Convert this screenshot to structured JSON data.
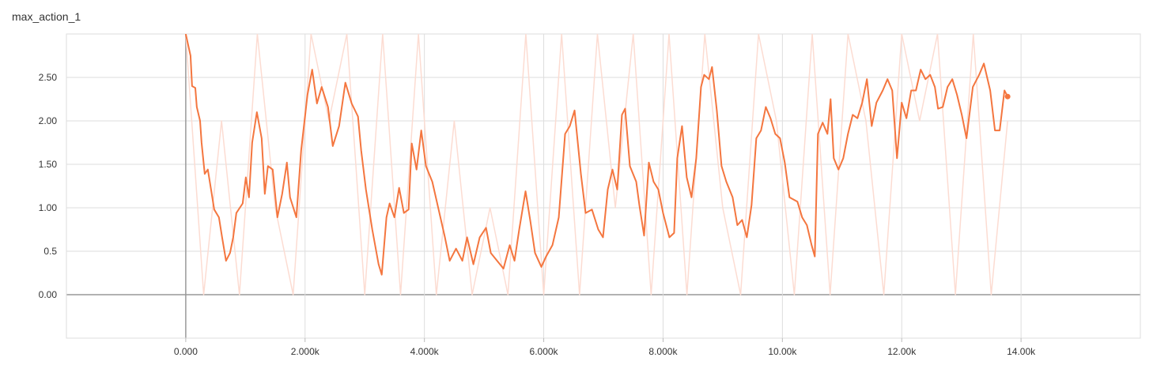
{
  "chart_data": {
    "type": "line",
    "title": "max_action_1",
    "xlim": [
      -2000,
      16000
    ],
    "ylim": [
      -0.5,
      3
    ],
    "xticks": [
      {
        "value": 0,
        "label": "0.000"
      },
      {
        "value": 2000,
        "label": "2.000k"
      },
      {
        "value": 4000,
        "label": "4.000k"
      },
      {
        "value": 6000,
        "label": "6.000k"
      },
      {
        "value": 8000,
        "label": "8.000k"
      },
      {
        "value": 10000,
        "label": "10.00k"
      },
      {
        "value": 12000,
        "label": "12.00k"
      },
      {
        "value": 14000,
        "label": "14.00k"
      }
    ],
    "yticks": [
      {
        "value": 0,
        "label": "0.00"
      },
      0.5,
      {
        "value": 1,
        "label": "1.00"
      },
      {
        "value": 1.5,
        "label": "1.50"
      },
      {
        "value": 2,
        "label": "2.00"
      },
      {
        "value": 2.5,
        "label": "2.50"
      }
    ],
    "grid": true,
    "series": [
      {
        "color": "#fcdcd2",
        "x": [
          0,
          300,
          600,
          900,
          1200,
          1500,
          1800,
          2100,
          2400,
          2700,
          3000,
          3300,
          3600,
          3900,
          4200,
          4500,
          4800,
          5100,
          5400,
          5700,
          6000,
          6300,
          6600,
          6900,
          7200,
          7500,
          7800,
          8100,
          8400,
          8700,
          9000,
          9300,
          9600,
          9900,
          10200,
          10500,
          10800,
          11100,
          11400,
          11700,
          12000,
          12300,
          12600,
          12900,
          13200,
          13500,
          13775
        ],
        "values": [
          3,
          0,
          2,
          0,
          3,
          1,
          0,
          3,
          2,
          3,
          0,
          3,
          0,
          3,
          0,
          2,
          0,
          1,
          0,
          3,
          0,
          3,
          0,
          3,
          1,
          3,
          0,
          3,
          0,
          3,
          1,
          0,
          3,
          2,
          0,
          3,
          0,
          3,
          2,
          0,
          3,
          2,
          3,
          0,
          3,
          0,
          2
        ]
      },
      {
        "color": "#f4763f",
        "x": [
          0,
          80,
          106,
          160,
          185,
          240,
          265,
          318,
          370,
          424,
          477,
          556,
          609,
          675,
          742,
          795,
          848,
          954,
          1007,
          1060,
          1113,
          1192,
          1272,
          1325,
          1377,
          1457,
          1536,
          1616,
          1695,
          1748,
          1854,
          1934,
          2040,
          2119,
          2199,
          2278,
          2384,
          2464,
          2570,
          2675,
          2781,
          2887,
          2940,
          3020,
          3126,
          3232,
          3285,
          3364,
          3417,
          3497,
          3576,
          3656,
          3735,
          3788,
          3868,
          3947,
          4026,
          4132,
          4238,
          4344,
          4424,
          4530,
          4636,
          4715,
          4821,
          4927,
          5033,
          5113,
          5219,
          5325,
          5430,
          5510,
          5589,
          5695,
          5775,
          5854,
          5960,
          6040,
          6146,
          6252,
          6358,
          6437,
          6517,
          6623,
          6702,
          6808,
          6914,
          6993,
          7073,
          7152,
          7232,
          7311,
          7364,
          7444,
          7550,
          7603,
          7682,
          7762,
          7841,
          7921,
          8000,
          8106,
          8185,
          8238,
          8318,
          8397,
          8477,
          8556,
          8636,
          8689,
          8768,
          8821,
          8901,
          8980,
          9060,
          9166,
          9245,
          9325,
          9404,
          9483,
          9563,
          9642,
          9722,
          9801,
          9881,
          9960,
          10040,
          10119,
          10252,
          10331,
          10411,
          10490,
          10543,
          10596,
          10675,
          10755,
          10808,
          10861,
          10940,
          11020,
          11099,
          11179,
          11258,
          11338,
          11417,
          11497,
          11576,
          11682,
          11762,
          11841,
          11921,
          12000,
          12079,
          12159,
          12238,
          12318,
          12397,
          12477,
          12556,
          12609,
          12689,
          12768,
          12848,
          12927,
          13007,
          13086,
          13192,
          13298,
          13377,
          13483,
          13563,
          13642,
          13722,
          13775
        ],
        "values": [
          3.0,
          2.75,
          2.4,
          2.38,
          2.16,
          2.0,
          1.75,
          1.39,
          1.44,
          1.21,
          0.98,
          0.89,
          0.66,
          0.39,
          0.48,
          0.66,
          0.94,
          1.05,
          1.35,
          1.12,
          1.75,
          2.1,
          1.8,
          1.16,
          1.48,
          1.44,
          0.89,
          1.16,
          1.52,
          1.12,
          0.89,
          1.66,
          2.3,
          2.59,
          2.2,
          2.39,
          2.16,
          1.71,
          1.94,
          2.44,
          2.2,
          2.05,
          1.66,
          1.21,
          0.75,
          0.35,
          0.23,
          0.89,
          1.05,
          0.89,
          1.23,
          0.94,
          0.98,
          1.74,
          1.44,
          1.89,
          1.48,
          1.3,
          0.98,
          0.66,
          0.39,
          0.53,
          0.39,
          0.66,
          0.35,
          0.66,
          0.77,
          0.48,
          0.39,
          0.3,
          0.57,
          0.39,
          0.75,
          1.19,
          0.85,
          0.48,
          0.32,
          0.44,
          0.57,
          0.89,
          1.85,
          1.94,
          2.12,
          1.39,
          0.94,
          0.98,
          0.75,
          0.66,
          1.21,
          1.44,
          1.21,
          2.07,
          2.14,
          1.48,
          1.3,
          1.03,
          0.68,
          1.52,
          1.3,
          1.21,
          0.94,
          0.66,
          0.71,
          1.57,
          1.94,
          1.35,
          1.12,
          1.57,
          2.39,
          2.53,
          2.48,
          2.62,
          2.12,
          1.48,
          1.3,
          1.12,
          0.8,
          0.86,
          0.66,
          1.03,
          1.8,
          1.89,
          2.16,
          2.03,
          1.85,
          1.8,
          1.52,
          1.12,
          1.07,
          0.89,
          0.8,
          0.57,
          0.44,
          1.85,
          1.98,
          1.85,
          2.25,
          1.57,
          1.44,
          1.57,
          1.85,
          2.07,
          2.03,
          2.21,
          2.48,
          1.94,
          2.21,
          2.35,
          2.48,
          2.35,
          1.57,
          2.21,
          2.03,
          2.35,
          2.35,
          2.59,
          2.48,
          2.53,
          2.39,
          2.14,
          2.16,
          2.39,
          2.48,
          2.3,
          2.07,
          1.8,
          2.39,
          2.53,
          2.66,
          2.35,
          1.89,
          1.89,
          2.35,
          2.28
        ]
      }
    ]
  }
}
